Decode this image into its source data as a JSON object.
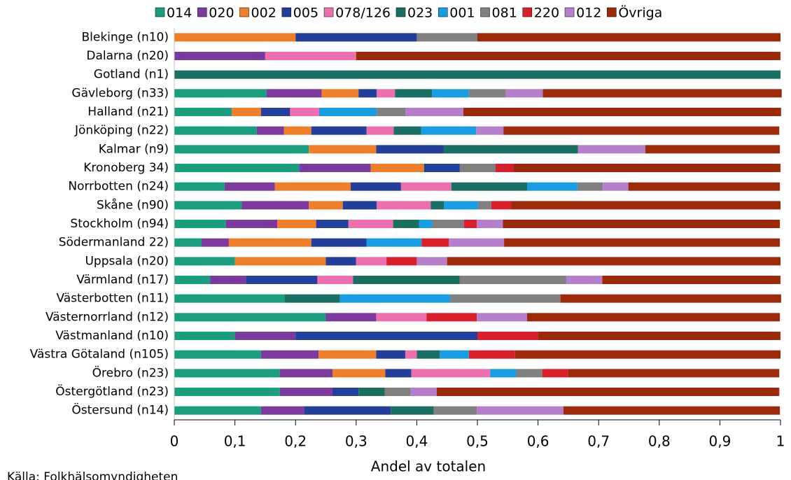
{
  "chart_data": {
    "type": "stacked-barh",
    "xlabel": "Andel av totalen",
    "source": "Källa: Folkhälsomyndigheten",
    "categories": [
      "Blekinge (n10)",
      "Dalarna (n20)",
      "Gotland (n1)",
      "Gävleborg (n33)",
      "Halland (n21)",
      "Jönköping (n22)",
      "Kalmar (n9)",
      "Kronoberg 34)",
      "Norrbotten (n24)",
      "Skåne (n90)",
      "Stockholm (n94)",
      "Södermanland 22)",
      "Uppsala (n20)",
      "Värmland (n17)",
      "Västerbotten (n11)",
      "Västernorrland (n12)",
      "Västmanland (n10)",
      "Västra Götaland (n105)",
      "Örebro (n23)",
      "Östergötland (n23)",
      "Östersund (n14)"
    ],
    "series": [
      {
        "name": "014",
        "color": "#1a9e7f",
        "values": [
          0,
          0,
          0,
          0.152,
          0.095,
          0.136,
          0.222,
          0.206,
          0.083,
          0.111,
          0.085,
          0.045,
          0.1,
          0.059,
          0.182,
          0.25,
          0.1,
          0.143,
          0.174,
          0.174,
          0.143
        ]
      },
      {
        "name": "020",
        "color": "#7a3b9c",
        "values": [
          0,
          0.15,
          0,
          0.091,
          0,
          0.045,
          0,
          0.118,
          0.083,
          0.111,
          0.085,
          0.045,
          0,
          0.059,
          0,
          0.083,
          0.1,
          0.095,
          0.087,
          0.087,
          0.071
        ]
      },
      {
        "name": "002",
        "color": "#ef7f2b",
        "values": [
          0.2,
          0,
          0,
          0.061,
          0.048,
          0.045,
          0.111,
          0.088,
          0.125,
          0.056,
          0.064,
          0.136,
          0.15,
          0,
          0,
          0,
          0,
          0.095,
          0.087,
          0,
          0
        ]
      },
      {
        "name": "005",
        "color": "#233f99",
        "values": [
          0.2,
          0,
          0,
          0.03,
          0.048,
          0.091,
          0.111,
          0.059,
          0.083,
          0.056,
          0.053,
          0.091,
          0.05,
          0.118,
          0,
          0,
          0.3,
          0.048,
          0.043,
          0.043,
          0.143
        ]
      },
      {
        "name": "078/126",
        "color": "#ee6fae",
        "values": [
          0,
          0.15,
          0,
          0.03,
          0.048,
          0.045,
          0,
          0,
          0.083,
          0.089,
          0.074,
          0,
          0.05,
          0.059,
          0,
          0.083,
          0,
          0.019,
          0.13,
          0,
          0
        ]
      },
      {
        "name": "023",
        "color": "#1b6e62",
        "values": [
          0,
          0,
          1,
          0.061,
          0,
          0.045,
          0.222,
          0,
          0.125,
          0.022,
          0.043,
          0,
          0,
          0.176,
          0.091,
          0,
          0,
          0.038,
          0,
          0.043,
          0.071
        ]
      },
      {
        "name": "001",
        "color": "#1a9de0",
        "values": [
          0,
          0,
          0,
          0.061,
          0.095,
          0.091,
          0,
          0,
          0.083,
          0.056,
          0.021,
          0.091,
          0,
          0,
          0.182,
          0,
          0,
          0.048,
          0.043,
          0,
          0
        ]
      },
      {
        "name": "081",
        "color": "#808080",
        "values": [
          0.1,
          0,
          0,
          0.061,
          0.048,
          0,
          0,
          0.059,
          0.042,
          0.022,
          0.053,
          0,
          0,
          0.176,
          0.182,
          0,
          0,
          0,
          0.043,
          0.043,
          0.071
        ]
      },
      {
        "name": "220",
        "color": "#d7202b",
        "values": [
          0,
          0,
          0,
          0,
          0,
          0,
          0,
          0.029,
          0,
          0.033,
          0.021,
          0.045,
          0.05,
          0,
          0,
          0.083,
          0.1,
          0.076,
          0.043,
          0,
          0
        ]
      },
      {
        "name": "012",
        "color": "#b67fca",
        "values": [
          0,
          0,
          0,
          0.061,
          0.095,
          0.045,
          0.111,
          0,
          0.042,
          0,
          0.043,
          0.091,
          0.05,
          0.059,
          0,
          0.083,
          0,
          0,
          0,
          0.043,
          0.143
        ]
      },
      {
        "name": "Övriga",
        "color": "#9b2a0b",
        "values": [
          0.5,
          0.7,
          0,
          0.394,
          0.524,
          0.455,
          0.222,
          0.441,
          0.25,
          0.444,
          0.457,
          0.455,
          0.55,
          0.294,
          0.364,
          0.417,
          0.4,
          0.438,
          0.348,
          0.565,
          0.357
        ]
      }
    ],
    "xlim": [
      0,
      1
    ],
    "xticks": [
      0,
      {
        "value": 0.1,
        "label": "0,1"
      },
      {
        "value": 0.2,
        "label": "0,2"
      },
      {
        "value": 0.3,
        "label": "0,3"
      },
      {
        "value": 0.4,
        "label": "0,4"
      },
      {
        "value": 0.5,
        "label": "0,5"
      },
      {
        "value": 0.6,
        "label": "0,6"
      },
      {
        "value": 0.7,
        "label": "0,7"
      },
      {
        "value": 0.8,
        "label": "0,8"
      },
      {
        "value": 0.9,
        "label": "0,9"
      },
      1
    ],
    "legend": "top"
  }
}
